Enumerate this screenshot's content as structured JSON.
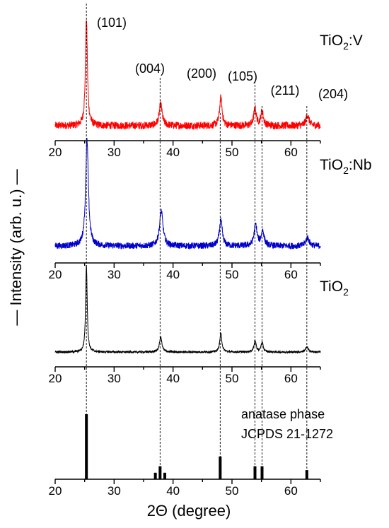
{
  "chart_data": {
    "type": "line",
    "xlabel": "2Θ (degree)",
    "ylabel": "Intensity (arb. u.)",
    "xlim": [
      20,
      65
    ],
    "x_ticks": [
      "20",
      "30",
      "40",
      "50",
      "60"
    ],
    "reference_lines_x": [
      25.3,
      37.8,
      48.0,
      53.9,
      55.1,
      62.7
    ],
    "peak_labels": [
      {
        "text": "(101)",
        "x": 25.3
      },
      {
        "text": "(004)",
        "x": 37.8
      },
      {
        "text": "(200)",
        "x": 48.0
      },
      {
        "text": "(105)",
        "x": 53.9
      },
      {
        "text": "(211)",
        "x": 55.1
      },
      {
        "text": "(204)",
        "x": 62.7
      }
    ],
    "panels": [
      {
        "sample": {
          "base": "TiO",
          "sub": "2",
          "suffix": ":V"
        },
        "color": "#ff0000",
        "baseline": 0.1,
        "noise": 0.035,
        "peaks": [
          {
            "x": 25.3,
            "height": 1.0,
            "width": 0.2
          },
          {
            "x": 37.9,
            "height": 0.2,
            "width": 0.3
          },
          {
            "x": 48.1,
            "height": 0.26,
            "width": 0.25
          },
          {
            "x": 53.9,
            "height": 0.16,
            "width": 0.25
          },
          {
            "x": 55.1,
            "height": 0.14,
            "width": 0.25
          },
          {
            "x": 62.8,
            "height": 0.1,
            "width": 0.3
          }
        ]
      },
      {
        "sample": {
          "base": "TiO",
          "sub": "2",
          "suffix": ":Nb"
        },
        "color": "#0000cc",
        "baseline": 0.12,
        "noise": 0.03,
        "peaks": [
          {
            "x": 25.4,
            "height": 1.0,
            "width": 0.28
          },
          {
            "x": 38.0,
            "height": 0.33,
            "width": 0.35
          },
          {
            "x": 48.1,
            "height": 0.24,
            "width": 0.3
          },
          {
            "x": 54.0,
            "height": 0.2,
            "width": 0.3
          },
          {
            "x": 55.2,
            "height": 0.14,
            "width": 0.3
          },
          {
            "x": 62.8,
            "height": 0.08,
            "width": 0.35
          }
        ]
      },
      {
        "sample": {
          "base": "TiO",
          "sub": "2",
          "suffix": ""
        },
        "color": "#000000",
        "baseline": 0.12,
        "noise": 0.012,
        "peaks": [
          {
            "x": 25.3,
            "height": 1.0,
            "width": 0.16
          },
          {
            "x": 37.9,
            "height": 0.17,
            "width": 0.25
          },
          {
            "x": 48.1,
            "height": 0.21,
            "width": 0.22
          },
          {
            "x": 53.9,
            "height": 0.13,
            "width": 0.22
          },
          {
            "x": 55.1,
            "height": 0.11,
            "width": 0.22
          },
          {
            "x": 62.7,
            "height": 0.06,
            "width": 0.28
          }
        ]
      }
    ],
    "reference_pattern": {
      "label_line1": "anatase phase",
      "label_line2": "JCPDS 21-1272",
      "sticks": [
        {
          "x": 25.3,
          "intensity": 100
        },
        {
          "x": 37.0,
          "intensity": 10
        },
        {
          "x": 37.8,
          "intensity": 20
        },
        {
          "x": 38.6,
          "intensity": 10
        },
        {
          "x": 48.0,
          "intensity": 35
        },
        {
          "x": 53.9,
          "intensity": 20
        },
        {
          "x": 55.1,
          "intensity": 20
        },
        {
          "x": 62.7,
          "intensity": 14
        }
      ]
    }
  }
}
